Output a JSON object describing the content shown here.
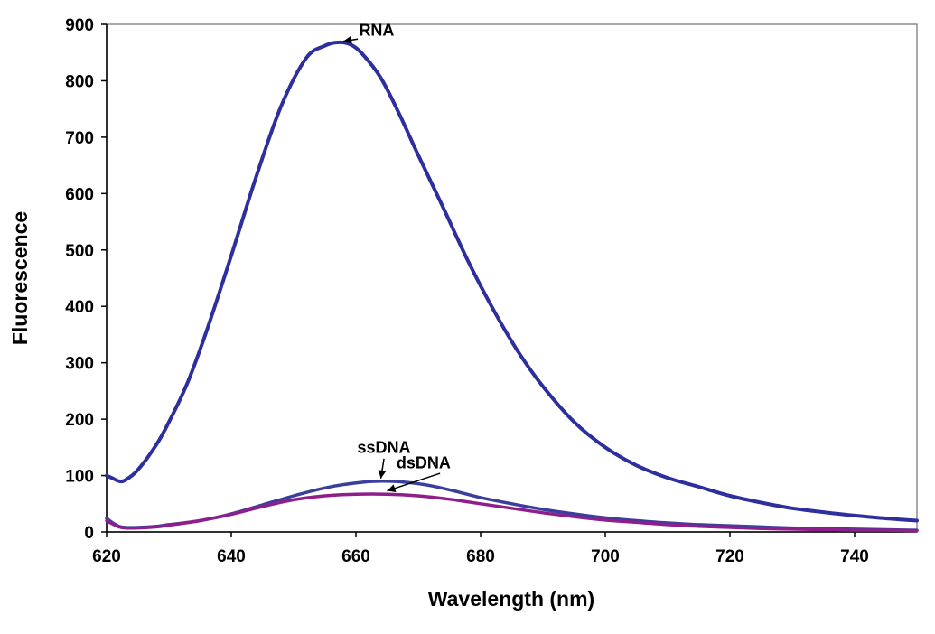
{
  "chart_data": {
    "type": "line",
    "xlabel": "Wavelength (nm)",
    "ylabel": "Fluorescence",
    "xlim": [
      620,
      750
    ],
    "ylim": [
      0,
      900
    ],
    "xticks": [
      620,
      640,
      660,
      680,
      700,
      720,
      740
    ],
    "yticks": [
      0,
      100,
      200,
      300,
      400,
      500,
      600,
      700,
      800,
      900
    ],
    "grid": false,
    "legend": "none",
    "series": [
      {
        "name": "RNA",
        "color": "#2E2F9E",
        "x": [
          620,
          621,
          622,
          623,
          625,
          628,
          630,
          633,
          636,
          640,
          644,
          648,
          652,
          655,
          657,
          659,
          661,
          664,
          667,
          670,
          674,
          678,
          682,
          686,
          690,
          695,
          700,
          705,
          710,
          715,
          720,
          725,
          730,
          735,
          740,
          745,
          750
        ],
        "y": [
          100,
          95,
          90,
          92,
          110,
          155,
          195,
          265,
          355,
          490,
          630,
          755,
          840,
          862,
          868,
          865,
          848,
          805,
          740,
          668,
          575,
          480,
          395,
          320,
          258,
          195,
          150,
          118,
          96,
          80,
          64,
          52,
          42,
          35,
          29,
          24,
          20
        ]
      },
      {
        "name": "ssDNA",
        "color": "#3B3F9C",
        "x": [
          620,
          621,
          622,
          623,
          625,
          628,
          630,
          635,
          640,
          645,
          650,
          655,
          660,
          664,
          668,
          672,
          676,
          680,
          685,
          690,
          695,
          700,
          705,
          710,
          715,
          720,
          725,
          730,
          735,
          740,
          745,
          750
        ],
        "y": [
          24,
          16,
          10,
          8,
          8,
          10,
          13,
          20,
          32,
          48,
          64,
          78,
          87,
          90,
          88,
          82,
          72,
          61,
          50,
          40,
          32,
          25,
          20,
          16,
          13,
          11,
          9,
          7,
          6,
          5,
          4,
          3
        ]
      },
      {
        "name": "dsDNA",
        "color": "#8E1E8C",
        "x": [
          620,
          621,
          622,
          623,
          625,
          628,
          630,
          635,
          640,
          645,
          650,
          655,
          660,
          665,
          670,
          675,
          680,
          685,
          690,
          695,
          700,
          705,
          710,
          715,
          720,
          725,
          730,
          735,
          740,
          745,
          750
        ],
        "y": [
          20,
          14,
          9,
          7,
          7,
          9,
          12,
          20,
          31,
          45,
          57,
          64,
          67,
          67,
          64,
          58,
          50,
          42,
          34,
          27,
          21,
          17,
          13,
          10,
          8,
          6,
          5,
          4,
          3,
          3,
          2
        ]
      }
    ],
    "annotations": [
      {
        "label": "RNA",
        "point": [
          658,
          867
        ]
      },
      {
        "label": "ssDNA",
        "point": [
          664,
          90
        ]
      },
      {
        "label": "dsDNA",
        "point": [
          665,
          68
        ]
      }
    ]
  }
}
